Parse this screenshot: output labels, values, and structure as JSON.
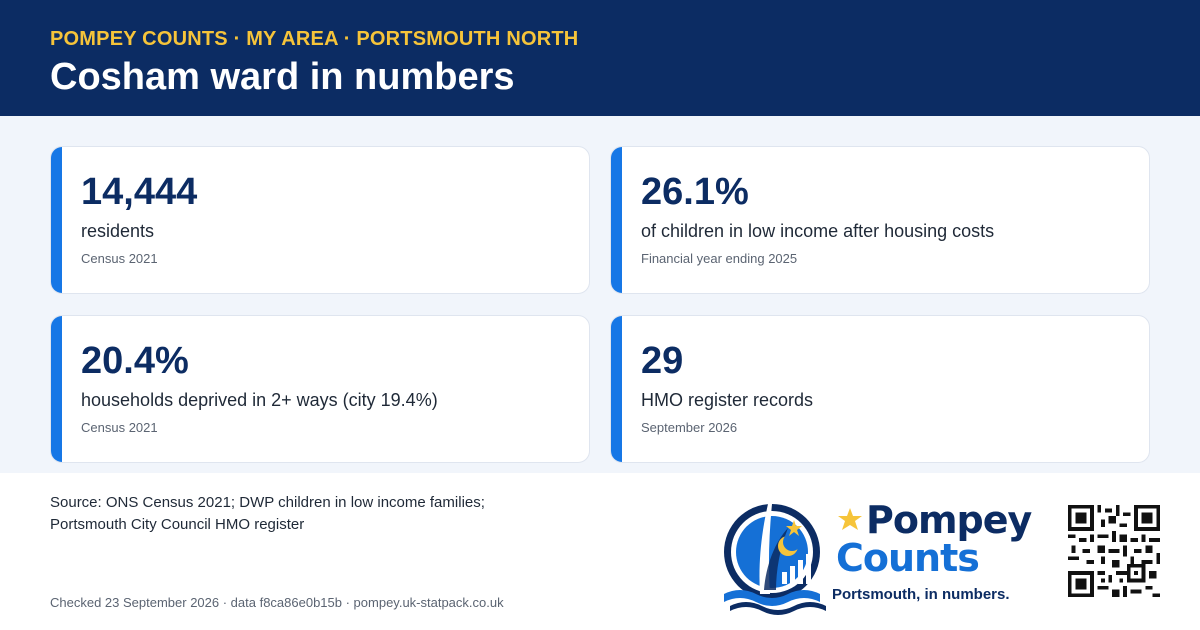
{
  "header": {
    "eyebrow": "POMPEY COUNTS · MY AREA · PORTSMOUTH NORTH",
    "title": "Cosham ward in numbers"
  },
  "stats": [
    {
      "value": "14,444",
      "label": "residents",
      "note": "Census 2021"
    },
    {
      "value": "26.1%",
      "label": "of children in low income after housing costs",
      "note": "Financial year ending 2025"
    },
    {
      "value": "20.4%",
      "label": "households deprived in 2+ ways (city 19.4%)",
      "note": "Census 2021"
    },
    {
      "value": "29",
      "label": "HMO register records",
      "note": "September 2026"
    }
  ],
  "footer": {
    "source_line1": "Source: ONS Census 2021; DWP children in low income families;",
    "source_line2": "Portsmouth City Council HMO register",
    "meta": "Checked 23 September 2026 · data f8ca86e0b15b · pompey.uk-statpack.co.uk"
  },
  "logo": {
    "word1": "Pompey",
    "word2": "Counts",
    "tagline": "Portsmouth, in numbers."
  },
  "colors": {
    "header_bg": "#0c2c63",
    "eyebrow": "#f6c43a",
    "accent": "#1677e6",
    "panel_bg": "#f1f5fb"
  },
  "icons": [
    "spinnaker-tower-logo-icon",
    "star-icon",
    "crescent-icon",
    "qr-code-icon"
  ]
}
